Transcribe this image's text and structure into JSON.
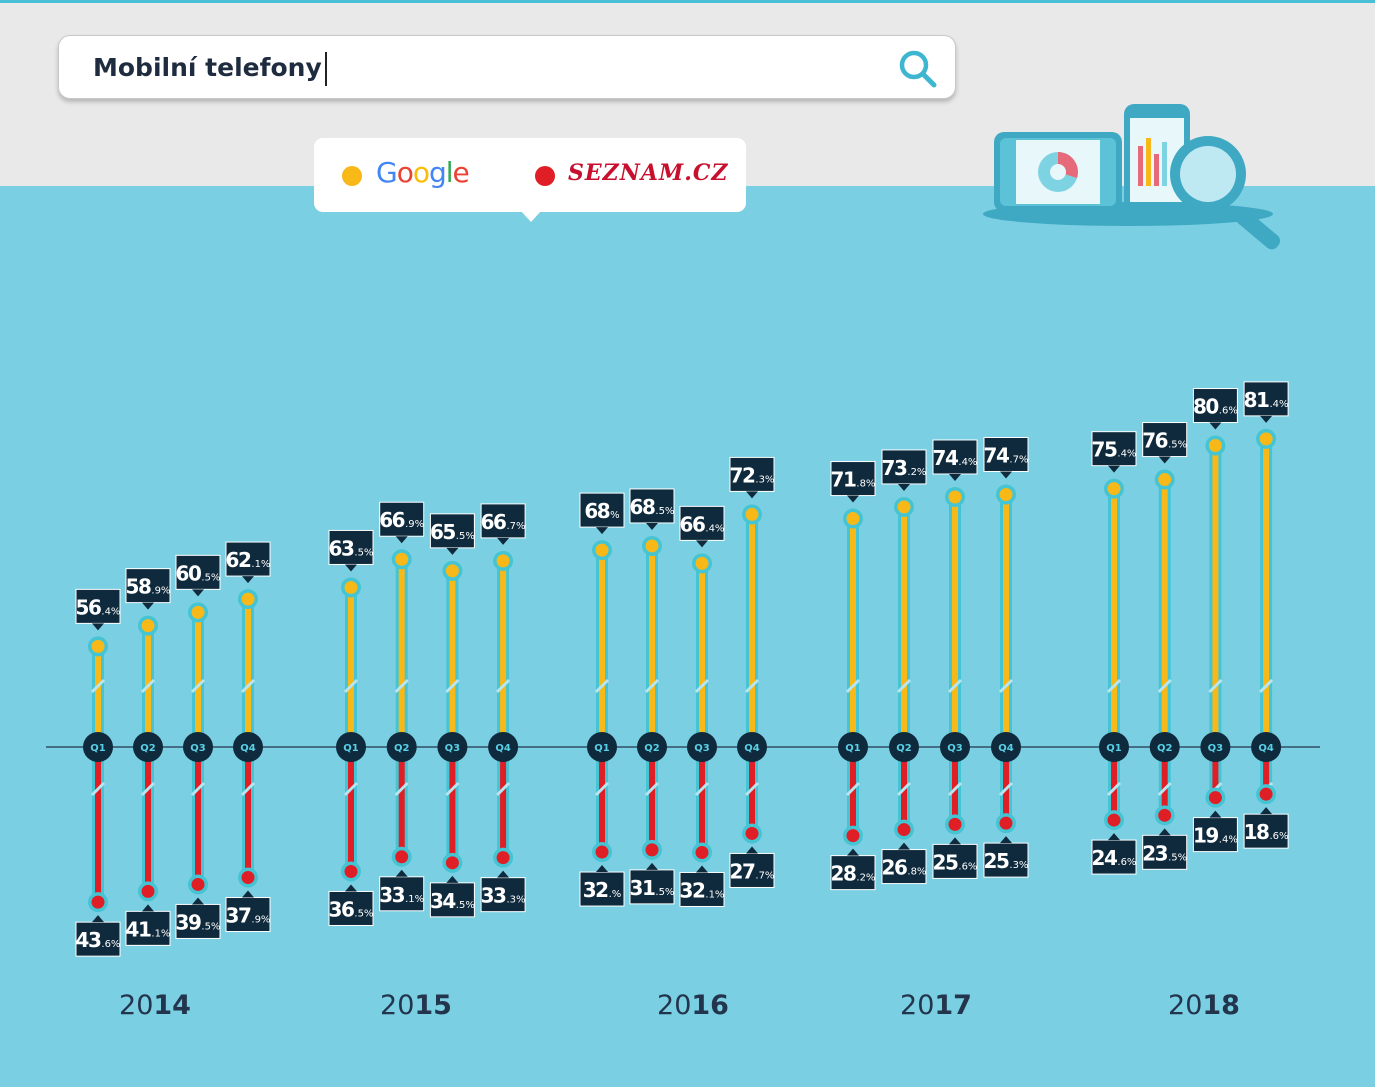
{
  "search": {
    "query": "Mobilní telefony"
  },
  "legend": {
    "google_label": "Google",
    "seznam_label": "SEZNAM.CZ",
    "google_color": "#f7b818",
    "seznam_color": "#e01e25"
  },
  "icons": {
    "search": "search-icon",
    "illustration": "devices-magnifier-illustration"
  },
  "chart_data": {
    "type": "bar",
    "categories": [
      "Q1 2014",
      "Q2 2014",
      "Q3 2014",
      "Q4 2014",
      "Q1 2015",
      "Q2 2015",
      "Q3 2015",
      "Q4 2015",
      "Q1 2016",
      "Q2 2016",
      "Q3 2016",
      "Q4 2016",
      "Q1 2017",
      "Q2 2017",
      "Q3 2017",
      "Q4 2017",
      "Q1 2018",
      "Q2 2018",
      "Q3 2018",
      "Q4 2018"
    ],
    "quarter_labels": [
      "Q1",
      "Q2",
      "Q3",
      "Q4"
    ],
    "years": [
      {
        "pre": "20",
        "bold": "14"
      },
      {
        "pre": "20",
        "bold": "15"
      },
      {
        "pre": "20",
        "bold": "16"
      },
      {
        "pre": "20",
        "bold": "17"
      },
      {
        "pre": "20",
        "bold": "18"
      }
    ],
    "unit": "%",
    "series": [
      {
        "name": "Google",
        "color": "#f7b818",
        "values": [
          56.4,
          58.9,
          60.5,
          62.1,
          63.5,
          66.9,
          65.5,
          66.7,
          68,
          68.5,
          66.4,
          72.3,
          71.8,
          73.2,
          74.4,
          74.7,
          75.4,
          76.5,
          80.6,
          81.4
        ],
        "labels": [
          [
            "56",
            ".4%"
          ],
          [
            "58",
            ".9%"
          ],
          [
            "60",
            ".5%"
          ],
          [
            "62",
            ".1%"
          ],
          [
            "63",
            ".5%"
          ],
          [
            "66",
            ".9%"
          ],
          [
            "65",
            ".5%"
          ],
          [
            "66",
            ".7%"
          ],
          [
            "68",
            "%"
          ],
          [
            "68",
            ".5%"
          ],
          [
            "66",
            ".4%"
          ],
          [
            "72",
            ".3%"
          ],
          [
            "71",
            ".8%"
          ],
          [
            "73",
            ".2%"
          ],
          [
            "74",
            ".4%"
          ],
          [
            "74",
            ".7%"
          ],
          [
            "75",
            ".4%"
          ],
          [
            "76",
            ".5%"
          ],
          [
            "80",
            ".6%"
          ],
          [
            "81",
            ".4%"
          ]
        ]
      },
      {
        "name": "Seznam.cz",
        "color": "#e01e25",
        "values": [
          43.6,
          41.1,
          39.5,
          37.9,
          36.5,
          33.1,
          34.5,
          33.3,
          32,
          31.5,
          32.1,
          27.7,
          28.2,
          26.8,
          25.6,
          25.3,
          24.6,
          23.5,
          19.4,
          18.6
        ],
        "labels": [
          [
            "43",
            ".6%"
          ],
          [
            "41",
            ".1%"
          ],
          [
            "39",
            ".5%"
          ],
          [
            "37",
            ".9%"
          ],
          [
            "36",
            ".5%"
          ],
          [
            "33",
            ".1%"
          ],
          [
            "34",
            ".5%"
          ],
          [
            "33",
            ".3%"
          ],
          [
            "32",
            ".%"
          ],
          [
            "31",
            ".5%"
          ],
          [
            "32",
            ".1%"
          ],
          [
            "27",
            ".7%"
          ],
          [
            "28",
            ".2%"
          ],
          [
            "26",
            ".8%"
          ],
          [
            "25",
            ".6%"
          ],
          [
            "25",
            ".3%"
          ],
          [
            "24",
            ".6%"
          ],
          [
            "23",
            ".5%"
          ],
          [
            "19",
            ".4%"
          ],
          [
            "18",
            ".6%"
          ]
        ]
      }
    ]
  }
}
